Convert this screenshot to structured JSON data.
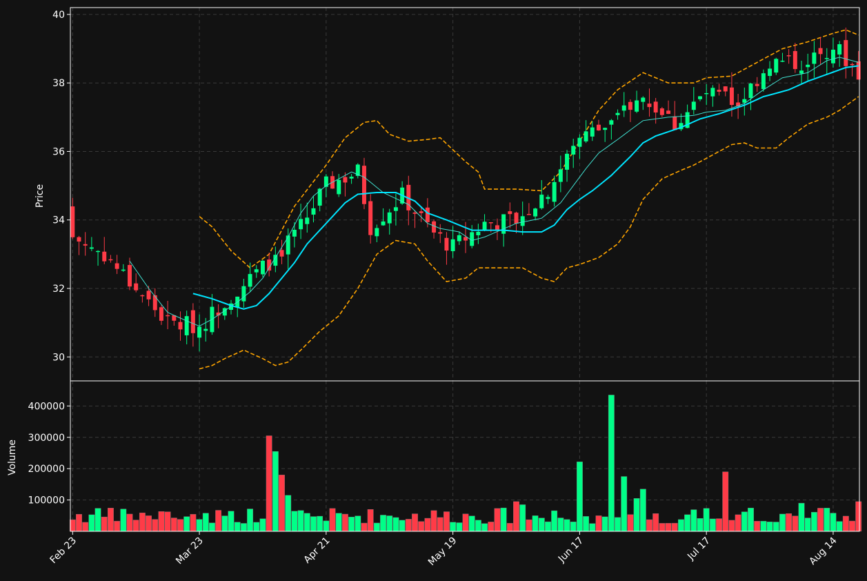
{
  "colors": {
    "background": "#121212",
    "up": "#00ff88",
    "down": "#ff3b47",
    "ma_fast": "#40e0d0",
    "ma_slow": "#00e5ff",
    "bands": "#ffa500",
    "grid": "#3a3a3a",
    "frame": "#ffffff"
  },
  "chart_data": {
    "type": "candlestick",
    "grid": true,
    "price_panel": {
      "ylabel": "Price",
      "ylim": [
        29.3,
        40.2
      ],
      "yticks": [
        30,
        32,
        34,
        36,
        38,
        40
      ],
      "ytick_labels": [
        "30",
        "32",
        "34",
        "36",
        "38",
        "40"
      ]
    },
    "volume_panel": {
      "ylabel": "Volume",
      "ylim": [
        0,
        480000
      ],
      "yticks": [
        100000,
        200000,
        300000,
        400000
      ],
      "ytick_labels": [
        "100000",
        "200000",
        "300000",
        "400000"
      ]
    },
    "xtick_labels": [
      {
        "index": 0,
        "label": "Feb 23"
      },
      {
        "index": 20,
        "label": "Mar 23"
      },
      {
        "index": 40,
        "label": "Apr 21"
      },
      {
        "index": 60,
        "label": "May 19"
      },
      {
        "index": 80,
        "label": "Jun 17"
      },
      {
        "index": 100,
        "label": "Jul 17"
      },
      {
        "index": 120,
        "label": "Aug 14"
      }
    ],
    "candle_count": 125,
    "anchors": {
      "close": [
        [
          0,
          33.5
        ],
        [
          5,
          33.0
        ],
        [
          10,
          32.0
        ],
        [
          15,
          31.0
        ],
        [
          20,
          30.9
        ],
        [
          25,
          31.8
        ],
        [
          30,
          32.6
        ],
        [
          35,
          33.5
        ],
        [
          40,
          35.0
        ],
        [
          45,
          35.4
        ],
        [
          47,
          33.8
        ],
        [
          52,
          34.7
        ],
        [
          57,
          33.6
        ],
        [
          60,
          33.2
        ],
        [
          65,
          33.9
        ],
        [
          70,
          34.0
        ],
        [
          75,
          34.9
        ],
        [
          80,
          36.4
        ],
        [
          85,
          36.8
        ],
        [
          90,
          37.6
        ],
        [
          95,
          36.8
        ],
        [
          100,
          37.7
        ],
        [
          105,
          37.4
        ],
        [
          110,
          38.6
        ],
        [
          115,
          38.6
        ],
        [
          120,
          39.1
        ],
        [
          124,
          38.3
        ]
      ],
      "upper_band": [
        [
          20,
          34.1
        ],
        [
          22,
          33.8
        ],
        [
          25,
          33.1
        ],
        [
          28,
          32.6
        ],
        [
          31,
          33.0
        ],
        [
          35,
          34.4
        ],
        [
          40,
          35.6
        ],
        [
          43,
          36.4
        ],
        [
          46,
          36.85
        ],
        [
          48,
          36.9
        ],
        [
          50,
          36.5
        ],
        [
          53,
          36.3
        ],
        [
          56,
          36.35
        ],
        [
          58,
          36.4
        ],
        [
          62,
          35.7
        ],
        [
          64,
          35.4
        ],
        [
          65,
          34.9
        ],
        [
          70,
          34.9
        ],
        [
          74,
          34.85
        ],
        [
          77,
          35.4
        ],
        [
          80,
          36.3
        ],
        [
          83,
          37.2
        ],
        [
          86,
          37.8
        ],
        [
          90,
          38.3
        ],
        [
          94,
          38.0
        ],
        [
          98,
          38.0
        ],
        [
          100,
          38.15
        ],
        [
          104,
          38.2
        ],
        [
          108,
          38.6
        ],
        [
          112,
          39.0
        ],
        [
          116,
          39.2
        ],
        [
          120,
          39.45
        ],
        [
          122,
          39.55
        ],
        [
          124,
          39.4
        ]
      ],
      "lower_band": [
        [
          20,
          29.65
        ],
        [
          22,
          29.75
        ],
        [
          24,
          29.95
        ],
        [
          27,
          30.2
        ],
        [
          30,
          29.95
        ],
        [
          32,
          29.75
        ],
        [
          34,
          29.85
        ],
        [
          36,
          30.2
        ],
        [
          39,
          30.75
        ],
        [
          42,
          31.2
        ],
        [
          45,
          32.0
        ],
        [
          48,
          33.0
        ],
        [
          51,
          33.4
        ],
        [
          54,
          33.3
        ],
        [
          56,
          32.8
        ],
        [
          59,
          32.2
        ],
        [
          62,
          32.3
        ],
        [
          64,
          32.6
        ],
        [
          68,
          32.6
        ],
        [
          71,
          32.6
        ],
        [
          74,
          32.3
        ],
        [
          76,
          32.2
        ],
        [
          78,
          32.6
        ],
        [
          80,
          32.7
        ],
        [
          83,
          32.9
        ],
        [
          86,
          33.3
        ],
        [
          88,
          33.8
        ],
        [
          90,
          34.6
        ],
        [
          93,
          35.2
        ],
        [
          96,
          35.45
        ],
        [
          98,
          35.6
        ],
        [
          101,
          35.9
        ],
        [
          104,
          36.2
        ],
        [
          106,
          36.25
        ],
        [
          108,
          36.1
        ],
        [
          111,
          36.1
        ],
        [
          113,
          36.4
        ],
        [
          116,
          36.8
        ],
        [
          119,
          37.0
        ],
        [
          121,
          37.2
        ],
        [
          124,
          37.6
        ]
      ],
      "ma_fast": [
        [
          9,
          32.8
        ],
        [
          12,
          32.0
        ],
        [
          15,
          31.3
        ],
        [
          18,
          31.05
        ],
        [
          20,
          30.9
        ],
        [
          22,
          31.1
        ],
        [
          24,
          31.35
        ],
        [
          26,
          31.6
        ],
        [
          28,
          31.9
        ],
        [
          30,
          32.3
        ],
        [
          32,
          32.9
        ],
        [
          34,
          33.5
        ],
        [
          36,
          34.2
        ],
        [
          38,
          34.7
        ],
        [
          40,
          35.0
        ],
        [
          44,
          35.4
        ],
        [
          46,
          35.25
        ],
        [
          49,
          34.8
        ],
        [
          53,
          34.45
        ],
        [
          56,
          33.9
        ],
        [
          58,
          33.75
        ],
        [
          61,
          33.65
        ],
        [
          63,
          33.4
        ],
        [
          65,
          33.5
        ],
        [
          70,
          33.9
        ],
        [
          74,
          34.05
        ],
        [
          77,
          34.5
        ],
        [
          79,
          35.0
        ],
        [
          81,
          35.5
        ],
        [
          83,
          35.95
        ],
        [
          86,
          36.35
        ],
        [
          90,
          36.9
        ],
        [
          94,
          37.0
        ],
        [
          98,
          37.05
        ],
        [
          100,
          37.15
        ],
        [
          103,
          37.2
        ],
        [
          106,
          37.4
        ],
        [
          109,
          37.8
        ],
        [
          112,
          38.15
        ],
        [
          116,
          38.3
        ],
        [
          119,
          38.65
        ],
        [
          121,
          38.75
        ],
        [
          124,
          38.6
        ]
      ],
      "ma_slow": [
        [
          19,
          31.85
        ],
        [
          22,
          31.7
        ],
        [
          25,
          31.5
        ],
        [
          27,
          31.4
        ],
        [
          29,
          31.5
        ],
        [
          31,
          31.85
        ],
        [
          33,
          32.3
        ],
        [
          35,
          32.75
        ],
        [
          37,
          33.3
        ],
        [
          40,
          33.9
        ],
        [
          43,
          34.5
        ],
        [
          45,
          34.75
        ],
        [
          48,
          34.8
        ],
        [
          51,
          34.8
        ],
        [
          54,
          34.55
        ],
        [
          56,
          34.2
        ],
        [
          59,
          34.0
        ],
        [
          61,
          33.85
        ],
        [
          63,
          33.7
        ],
        [
          68,
          33.7
        ],
        [
          71,
          33.65
        ],
        [
          74,
          33.65
        ],
        [
          76,
          33.85
        ],
        [
          78,
          34.3
        ],
        [
          80,
          34.6
        ],
        [
          82,
          34.85
        ],
        [
          85,
          35.3
        ],
        [
          88,
          35.85
        ],
        [
          90,
          36.25
        ],
        [
          92,
          36.45
        ],
        [
          96,
          36.7
        ],
        [
          99,
          36.95
        ],
        [
          102,
          37.1
        ],
        [
          106,
          37.35
        ],
        [
          109,
          37.6
        ],
        [
          113,
          37.8
        ],
        [
          116,
          38.05
        ],
        [
          119,
          38.25
        ],
        [
          122,
          38.45
        ],
        [
          124,
          38.5
        ]
      ]
    },
    "volume_spikes": [
      [
        31,
        305000
      ],
      [
        32,
        255000
      ],
      [
        33,
        180000
      ],
      [
        34,
        115000
      ],
      [
        80,
        222000
      ],
      [
        85,
        435000
      ],
      [
        87,
        175000
      ],
      [
        89,
        105000
      ],
      [
        90,
        135000
      ],
      [
        103,
        190000
      ],
      [
        115,
        90000
      ],
      [
        124,
        95000
      ],
      [
        70,
        95000
      ],
      [
        71,
        85000
      ]
    ]
  }
}
